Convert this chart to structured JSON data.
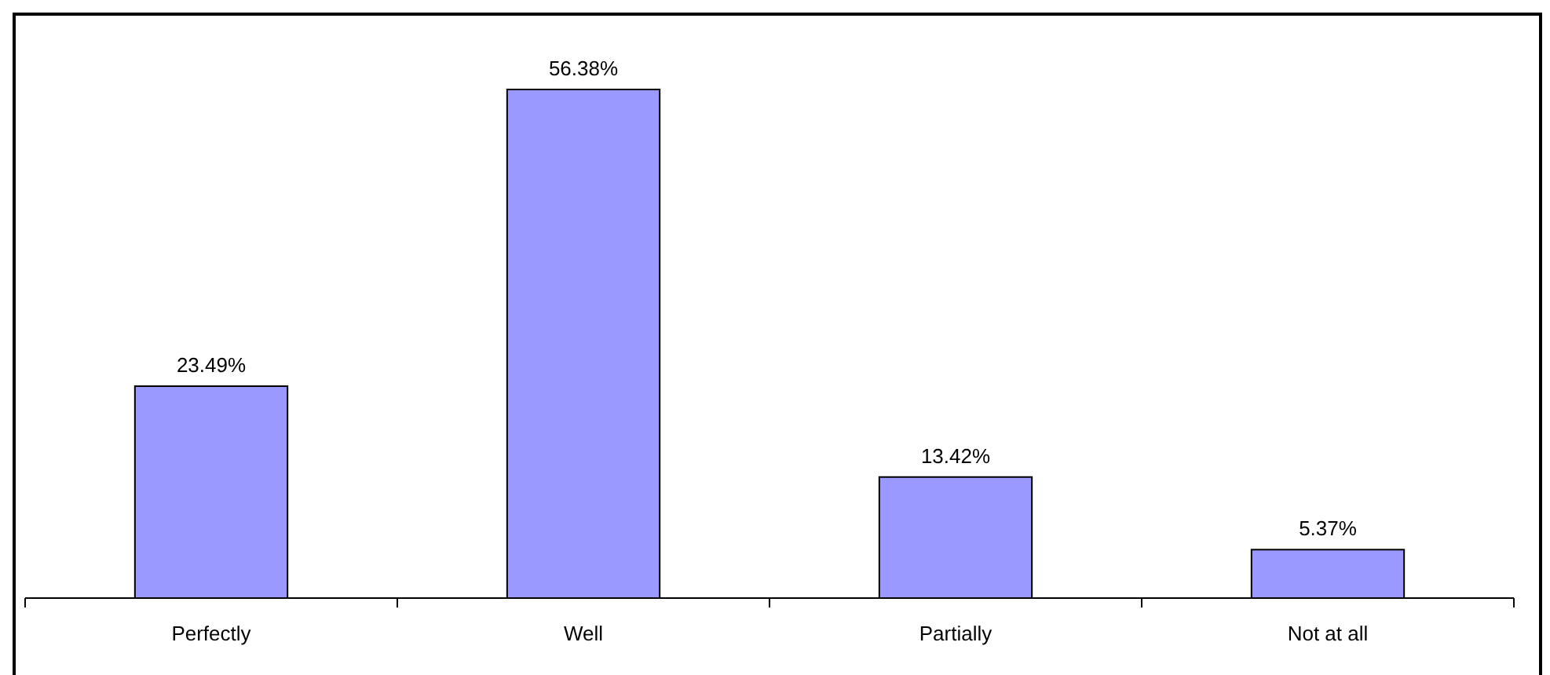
{
  "chart_data": {
    "type": "bar",
    "categories": [
      "Perfectly",
      "Well",
      "Partially",
      "Not at all"
    ],
    "values": [
      23.49,
      56.38,
      13.42,
      5.37
    ],
    "value_labels": [
      "23.49%",
      "56.38%",
      "13.42%",
      "5.37%"
    ],
    "color": "#9999ff"
  }
}
